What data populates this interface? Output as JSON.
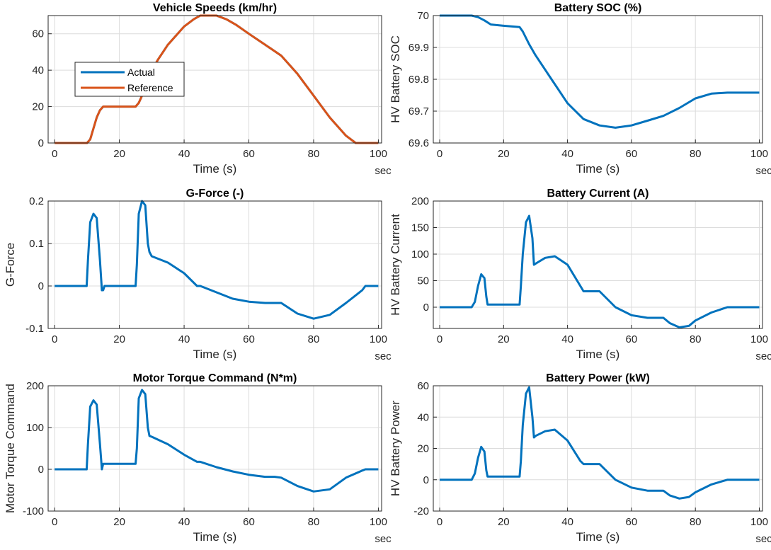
{
  "chart_data": [
    {
      "type": "line",
      "title": "Vehicle Speeds (km/hr)",
      "xlabel": "Time (s)",
      "ylabel": "",
      "x_unit": "sec",
      "xlim": [
        -2,
        101
      ],
      "ylim": [
        0,
        70
      ],
      "xticks": [
        0,
        20,
        40,
        60,
        80,
        100
      ],
      "yticks": [
        0,
        20,
        40,
        60
      ],
      "ytick_labels": [
        "0",
        "20",
        "40",
        "60"
      ],
      "grid": true,
      "legend": {
        "placement": "upper-left",
        "entries": [
          "Actual",
          "Reference"
        ]
      },
      "series": [
        {
          "name": "Actual",
          "color": "#0072BD",
          "x": [
            0,
            10,
            11,
            12,
            13,
            14,
            15,
            25,
            26,
            27,
            28,
            30,
            32,
            35,
            40,
            43,
            45,
            48,
            50,
            53,
            56,
            60,
            65,
            70,
            75,
            80,
            85,
            90,
            93,
            95,
            100
          ],
          "y": [
            0,
            0,
            2,
            8,
            14,
            18,
            20,
            20,
            22,
            26,
            32,
            40,
            46,
            54,
            64,
            68,
            70,
            70,
            70,
            68,
            65,
            60,
            54,
            48,
            38,
            26,
            14,
            4,
            0,
            0,
            0
          ]
        },
        {
          "name": "Reference",
          "color": "#D95319",
          "x": [
            0,
            10,
            11,
            12,
            13,
            14,
            15,
            25,
            26,
            27,
            28,
            30,
            32,
            35,
            40,
            43,
            45,
            48,
            50,
            53,
            56,
            60,
            65,
            70,
            75,
            80,
            85,
            90,
            93,
            95,
            100
          ],
          "y": [
            0,
            0,
            2,
            8,
            14,
            18,
            20,
            20,
            22,
            26,
            32,
            40,
            46,
            54,
            64,
            68,
            70,
            70,
            70,
            68,
            65,
            60,
            54,
            48,
            38,
            26,
            14,
            4,
            0,
            0,
            0
          ]
        }
      ]
    },
    {
      "type": "line",
      "title": "Battery SOC (%)",
      "xlabel": "Time (s)",
      "ylabel": "HV Battery SOC",
      "x_unit": "sec",
      "xlim": [
        -2,
        101
      ],
      "ylim": [
        69.6,
        70
      ],
      "xticks": [
        0,
        20,
        40,
        60,
        80,
        100
      ],
      "yticks": [
        69.6,
        69.7,
        69.8,
        69.9,
        70
      ],
      "ytick_labels": [
        "69.6",
        "69.7",
        "69.8",
        "69.9",
        "70"
      ],
      "grid": true,
      "series": [
        {
          "name": "SOC",
          "color": "#0072BD",
          "x": [
            0,
            10,
            12,
            14,
            16,
            20,
            25,
            26,
            28,
            30,
            35,
            40,
            45,
            50,
            55,
            60,
            65,
            70,
            75,
            80,
            85,
            90,
            95,
            100
          ],
          "y": [
            70,
            70,
            69.995,
            69.985,
            69.972,
            69.968,
            69.964,
            69.95,
            69.91,
            69.875,
            69.8,
            69.725,
            69.675,
            69.655,
            69.648,
            69.655,
            69.67,
            69.685,
            69.71,
            69.74,
            69.755,
            69.758,
            69.758,
            69.758
          ]
        }
      ]
    },
    {
      "type": "line",
      "title": "G-Force (-)",
      "xlabel": "Time (s)",
      "ylabel": "G-Force",
      "x_unit": "sec",
      "xlim": [
        -2,
        101
      ],
      "ylim": [
        -0.1,
        0.2
      ],
      "xticks": [
        0,
        20,
        40,
        60,
        80,
        100
      ],
      "yticks": [
        -0.1,
        0,
        0.1,
        0.2
      ],
      "ytick_labels": [
        "-0.1",
        "0",
        "0.1",
        "0.2"
      ],
      "grid": true,
      "series": [
        {
          "name": "G-Force",
          "color": "#0072BD",
          "x": [
            0,
            9.9,
            10.3,
            11,
            12,
            13,
            14,
            14.6,
            15,
            15.4,
            25,
            25.4,
            26,
            27,
            28,
            28.8,
            29.3,
            30,
            35,
            40,
            44,
            45,
            50,
            55,
            60,
            65,
            68,
            70,
            75,
            80,
            85,
            90,
            95,
            96,
            100
          ],
          "y": [
            0,
            0,
            0.06,
            0.15,
            0.17,
            0.16,
            0.06,
            -0.01,
            -0.01,
            0,
            0,
            0.05,
            0.17,
            0.2,
            0.19,
            0.1,
            0.08,
            0.07,
            0.055,
            0.03,
            0,
            0,
            -0.015,
            -0.03,
            -0.037,
            -0.04,
            -0.04,
            -0.04,
            -0.065,
            -0.077,
            -0.068,
            -0.04,
            -0.01,
            0,
            0
          ]
        }
      ]
    },
    {
      "type": "line",
      "title": "Battery Current (A)",
      "xlabel": "Time (s)",
      "ylabel": "HV Battery Current",
      "x_unit": "sec",
      "xlim": [
        -2,
        101
      ],
      "ylim": [
        -40,
        200
      ],
      "xticks": [
        0,
        20,
        40,
        60,
        80,
        100
      ],
      "yticks": [
        0,
        50,
        100,
        150,
        200
      ],
      "ytick_labels": [
        "0",
        "50",
        "100",
        "150",
        "200"
      ],
      "grid": true,
      "series": [
        {
          "name": "Current",
          "color": "#0072BD",
          "x": [
            0,
            10,
            11,
            12,
            13,
            14,
            14.6,
            15,
            25,
            25.4,
            26,
            27,
            28,
            29,
            29.5,
            30,
            33,
            36,
            40,
            44,
            45,
            50,
            55,
            60,
            65,
            70,
            72,
            75,
            78,
            80,
            85,
            90,
            95,
            100
          ],
          "y": [
            0,
            0,
            10,
            40,
            62,
            55,
            20,
            5,
            5,
            40,
            100,
            160,
            172,
            130,
            80,
            82,
            93,
            96,
            80,
            40,
            30,
            30,
            0,
            -15,
            -20,
            -20,
            -30,
            -38,
            -35,
            -25,
            -10,
            0,
            0,
            0
          ]
        }
      ]
    },
    {
      "type": "line",
      "title": "Motor Torque Command (N*m)",
      "xlabel": "Time (s)",
      "ylabel": "Motor Torque Command",
      "x_unit": "sec",
      "xlim": [
        -2,
        101
      ],
      "ylim": [
        -100,
        200
      ],
      "xticks": [
        0,
        20,
        40,
        60,
        80,
        100
      ],
      "yticks": [
        -100,
        0,
        100,
        200
      ],
      "ytick_labels": [
        "-100",
        "0",
        "100",
        "200"
      ],
      "grid": true,
      "series": [
        {
          "name": "Torque",
          "color": "#0072BD",
          "x": [
            0,
            9.9,
            10.3,
            11,
            12,
            13,
            14,
            14.6,
            15,
            25,
            25.4,
            26,
            27,
            28,
            28.8,
            29.3,
            30,
            35,
            40,
            44,
            45,
            50,
            55,
            60,
            65,
            68,
            70,
            75,
            80,
            85,
            90,
            95,
            96,
            100
          ],
          "y": [
            0,
            0,
            60,
            150,
            165,
            155,
            60,
            0,
            13,
            13,
            50,
            170,
            190,
            180,
            100,
            80,
            78,
            60,
            35,
            18,
            18,
            5,
            -5,
            -13,
            -18,
            -18,
            -20,
            -40,
            -53,
            -48,
            -20,
            -3,
            0,
            0
          ]
        }
      ]
    },
    {
      "type": "line",
      "title": "Battery Power (kW)",
      "xlabel": "Time (s)",
      "ylabel": "HV Battery Power",
      "x_unit": "sec",
      "xlim": [
        -2,
        101
      ],
      "ylim": [
        -20,
        60
      ],
      "xticks": [
        0,
        20,
        40,
        60,
        80,
        100
      ],
      "yticks": [
        -20,
        0,
        20,
        40,
        60
      ],
      "ytick_labels": [
        "-20",
        "0",
        "20",
        "40",
        "60"
      ],
      "grid": true,
      "series": [
        {
          "name": "Power",
          "color": "#0072BD",
          "x": [
            0,
            10,
            11,
            12,
            13,
            14,
            14.6,
            15,
            25,
            25.4,
            26,
            27,
            28,
            29,
            29.5,
            30,
            33,
            36,
            40,
            44,
            45,
            50,
            55,
            60,
            65,
            70,
            72,
            75,
            78,
            80,
            85,
            90,
            95,
            100
          ],
          "y": [
            0,
            0,
            4,
            14,
            21,
            18,
            6,
            2,
            2,
            12,
            35,
            55,
            59,
            40,
            27,
            28,
            31,
            32,
            25,
            12,
            10,
            10,
            0,
            -5,
            -7,
            -7,
            -10,
            -12,
            -11,
            -8,
            -3,
            0,
            0,
            0
          ]
        }
      ]
    }
  ]
}
